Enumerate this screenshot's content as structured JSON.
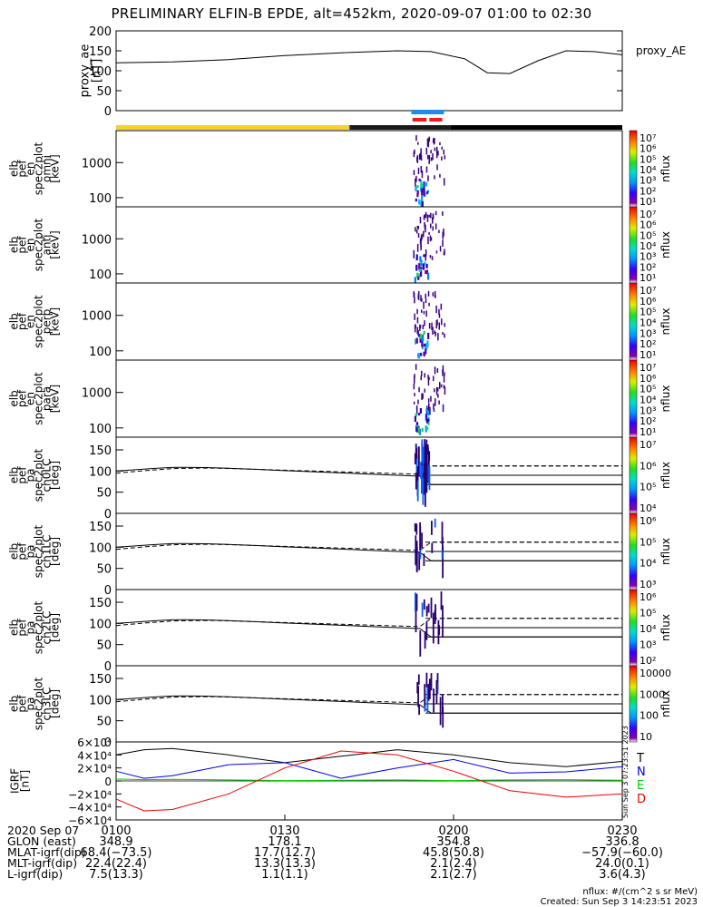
{
  "title": "PRELIMINARY ELFIN-B EPDE, alt=452km, 2020-09-07 01:00 to 02:30",
  "chart_data": [
    {
      "type": "line",
      "panel": "proxy_ae",
      "ylabel": [
        "proxy_ae",
        "[nT]"
      ],
      "legend": "proxy_AE",
      "ylim": [
        0,
        200
      ],
      "yticks": [
        "200",
        "150",
        "100",
        "50",
        "0"
      ],
      "x_minutes": [
        0,
        10,
        20,
        30,
        40,
        50,
        56,
        62,
        66,
        70,
        75,
        80,
        85,
        90
      ],
      "values": [
        120,
        122,
        128,
        138,
        145,
        150,
        148,
        130,
        95,
        93,
        125,
        150,
        148,
        140
      ]
    },
    {
      "type": "heatmap",
      "panel": "elb_pef_en_spec2plot_omni",
      "ylabel": [
        "elb",
        "pef",
        "en",
        "spec2plot",
        "omni",
        "[keV]"
      ],
      "yscale": "log",
      "yticks": [
        "1000",
        "100"
      ],
      "colorbar_label": "nflux",
      "colorbar_ticks": [
        "10⁷",
        "10⁶",
        "10⁵",
        "10⁴",
        "10³",
        "10²",
        "10¹"
      ]
    },
    {
      "type": "heatmap",
      "panel": "elb_pef_en_spec2plot_anti",
      "ylabel": [
        "elb",
        "pef",
        "en",
        "spec2plot",
        "anti",
        "[keV]"
      ],
      "yscale": "log",
      "yticks": [
        "1000",
        "100"
      ],
      "colorbar_label": "nflux",
      "colorbar_ticks": [
        "10⁷",
        "10⁶",
        "10⁵",
        "10⁴",
        "10³",
        "10²",
        "10¹"
      ]
    },
    {
      "type": "heatmap",
      "panel": "elb_pef_en_spec2plot_perp",
      "ylabel": [
        "elb",
        "pef",
        "en",
        "spec2plot",
        "perp",
        "[keV]"
      ],
      "yscale": "log",
      "yticks": [
        "1000",
        "100"
      ],
      "colorbar_label": "nflux",
      "colorbar_ticks": [
        "10⁷",
        "10⁶",
        "10⁵",
        "10⁴",
        "10³",
        "10²",
        "10¹"
      ]
    },
    {
      "type": "heatmap",
      "panel": "elb_pef_en_spec2plot_para",
      "ylabel": [
        "elb",
        "pef",
        "en",
        "spec2plot",
        "para",
        "[keV]"
      ],
      "yscale": "log",
      "yticks": [
        "1000",
        "100"
      ],
      "colorbar_label": "nflux",
      "colorbar_ticks": [
        "10⁷",
        "10⁶",
        "10⁵",
        "10⁴",
        "10³",
        "10²",
        "10¹"
      ]
    },
    {
      "type": "heatmap",
      "panel": "elb_pef_pa_spec2plot_ch0LC",
      "ylabel": [
        "elb",
        "pef",
        "pa",
        "spec2plot",
        "ch0LC",
        "[deg]"
      ],
      "ylim": [
        0,
        180
      ],
      "yticks": [
        "150",
        "100",
        "50",
        "0"
      ],
      "colorbar_label": "nflux",
      "colorbar_ticks": [
        "10⁷",
        "10⁶",
        "10⁵",
        "10⁴"
      ]
    },
    {
      "type": "heatmap",
      "panel": "elb_pef_pa_spec2plot_ch1LC",
      "ylabel": [
        "elb",
        "pef",
        "pa",
        "spec2plot",
        "ch1LC",
        "[deg]"
      ],
      "ylim": [
        0,
        180
      ],
      "yticks": [
        "150",
        "100",
        "50",
        "0"
      ],
      "colorbar_label": "nflux",
      "colorbar_ticks": [
        "10⁶",
        "10⁵",
        "10⁴",
        "10³"
      ]
    },
    {
      "type": "heatmap",
      "panel": "elb_pef_pa_spec2plot_ch2LC",
      "ylabel": [
        "elb",
        "pef",
        "pa",
        "spec2plot",
        "ch2LC",
        "[deg]"
      ],
      "ylim": [
        0,
        180
      ],
      "yticks": [
        "150",
        "100",
        "50",
        "0"
      ],
      "colorbar_label": "nflux",
      "colorbar_ticks": [
        "10⁶",
        "10⁵",
        "10⁴",
        "10³",
        "10²"
      ]
    },
    {
      "type": "heatmap",
      "panel": "elb_pef_pa_spec2plot_ch3LC",
      "ylabel": [
        "elb",
        "pef",
        "pa",
        "spec2plot",
        "ch3LC",
        "[deg]"
      ],
      "ylim": [
        0,
        180
      ],
      "yticks": [
        "150",
        "100",
        "50",
        "0"
      ],
      "colorbar_label": "nflux",
      "colorbar_ticks": [
        "10000",
        "1000",
        "100",
        "10"
      ]
    },
    {
      "type": "line",
      "panel": "IGRF",
      "ylabel": [
        "IGRF",
        "[nT]"
      ],
      "ylim": [
        -60000,
        60000
      ],
      "yticks": [
        "6×10⁴",
        "4×10⁴",
        "2×10⁴",
        "0",
        "−2×10⁴",
        "−4×10⁴",
        "−6×10⁴"
      ],
      "x_minutes": [
        0,
        5,
        10,
        20,
        30,
        40,
        50,
        60,
        70,
        80,
        90
      ],
      "series": [
        {
          "name": "T",
          "color": "#000000",
          "values": [
            40000,
            48000,
            50000,
            40000,
            28000,
            38000,
            48000,
            40000,
            28000,
            22000,
            30000
          ]
        },
        {
          "name": "N",
          "color": "#0000ee",
          "values": [
            15000,
            4000,
            8000,
            25000,
            28000,
            4000,
            20000,
            33000,
            12000,
            14000,
            22000
          ]
        },
        {
          "name": "E",
          "color": "#00cc00",
          "values": [
            3000,
            2000,
            2500,
            1500,
            500,
            1000,
            1500,
            500,
            1500,
            2000,
            1000
          ]
        },
        {
          "name": "D",
          "color": "#ee0000",
          "values": [
            -28000,
            -46000,
            -44000,
            -20000,
            20000,
            46000,
            40000,
            15000,
            -15000,
            -25000,
            -20000
          ]
        }
      ]
    }
  ],
  "igrf_legend": [
    {
      "name": "T",
      "color": "#000000"
    },
    {
      "name": "N",
      "color": "#0000ee"
    },
    {
      "name": "E",
      "color": "#00cc00"
    },
    {
      "name": "D",
      "color": "#ee0000"
    }
  ],
  "ephemeris": {
    "labels": [
      "2020 Sep 07",
      "GLON (east)",
      "MLAT-igrf(dip)",
      "MLT-igrf(dip)",
      "L-igrf(dip)"
    ],
    "times": [
      "0100",
      "0130",
      "0200",
      "0230"
    ],
    "columns": [
      [
        "348.9",
        "68.4(−73.5)",
        "22.4(22.4)",
        "7.5(13.3)"
      ],
      [
        "178.1",
        "17.7(12.7)",
        "13.3(13.3)",
        "1.1(1.1)"
      ],
      [
        "354.8",
        "45.8(50.8)",
        "2.1(2.4)",
        "2.1(2.7)"
      ],
      [
        "336.8",
        "−57.9(−60.0)",
        "24.0(0.1)",
        "3.6(4.3)"
      ]
    ]
  },
  "footer": {
    "units": "nflux: #/(cm^2 s sr MeV)",
    "created": "Created: Sun Sep  3 14:23:51 2023",
    "side_stamp": "Sun Sep  3 07:23:51 2023"
  }
}
